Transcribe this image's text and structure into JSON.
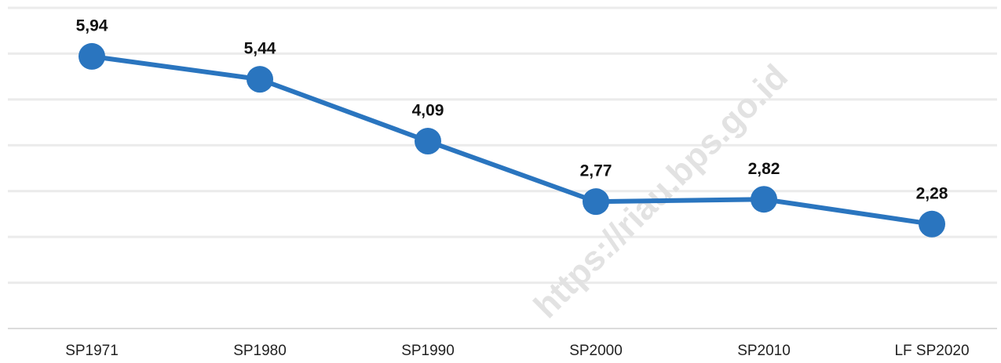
{
  "chart_data": {
    "type": "line",
    "watermark": "https://riau.bps.go.id",
    "categories": [
      "SP1971",
      "SP1980",
      "SP1990",
      "SP2000",
      "SP2010",
      "LF SP2020"
    ],
    "series": [
      {
        "name": null,
        "color": "#2a75bf",
        "values": [
          5.94,
          5.44,
          4.09,
          2.77,
          2.82,
          2.28
        ],
        "value_labels": [
          "5,94",
          "5,44",
          "4,09",
          "2,77",
          "2,82",
          "2,28"
        ]
      }
    ],
    "ylim": [
      0,
      7
    ],
    "yticks": [
      0,
      1,
      2,
      3,
      4,
      5,
      6,
      7
    ],
    "grid": true
  }
}
